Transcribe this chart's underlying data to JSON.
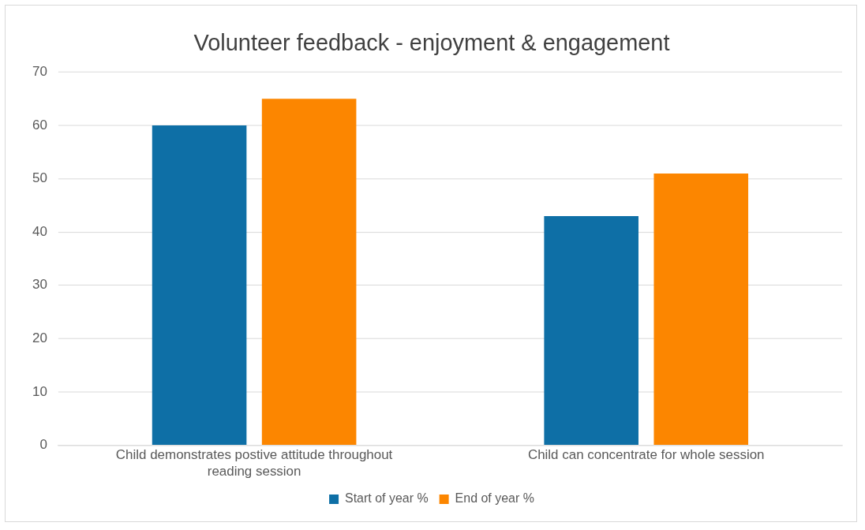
{
  "chart_data": {
    "type": "bar",
    "title": "Volunteer feedback - enjoyment & engagement",
    "categories": [
      "Child demonstrates postive attitude throughout reading session",
      "Child can concentrate for whole session"
    ],
    "series": [
      {
        "name": "Start of year %",
        "color": "#0e6fa6",
        "values": [
          60,
          43
        ]
      },
      {
        "name": "End of year %",
        "color": "#fc8600",
        "values": [
          65,
          51
        ]
      }
    ],
    "ylim": [
      0,
      70
    ],
    "yticks": [
      0,
      10,
      20,
      30,
      40,
      50,
      60,
      70
    ],
    "grid": "y",
    "legend": "bottom"
  }
}
